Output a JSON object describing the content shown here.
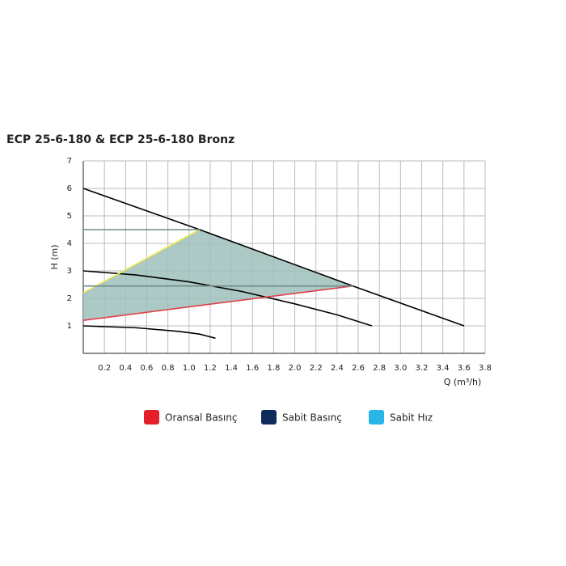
{
  "chart_data": {
    "type": "line",
    "title": "ECP 25-6-180 & ECP 25-6-180 Bronz",
    "xlabel": "Q (m³/h)",
    "ylabel": "H (m)",
    "xlim": [
      0,
      3.8
    ],
    "ylim": [
      0,
      7
    ],
    "xticks": [
      0.2,
      0.4,
      0.6,
      0.8,
      {
        "value": 1,
        "label": "1.0"
      },
      1.2,
      1.4,
      1.6,
      1.8,
      {
        "value": 2,
        "label": "2.0"
      },
      2.2,
      2.4,
      2.6,
      2.8,
      {
        "value": 3,
        "label": "3.0"
      },
      3.2,
      3.4,
      3.6,
      3.8
    ],
    "yticks": [
      1,
      2,
      3,
      4,
      5,
      6,
      7
    ],
    "grid": true,
    "region": {
      "color": "#9dbfbc",
      "x": [
        0,
        0,
        1.1,
        2.55
      ],
      "values": [
        1.2,
        2.2,
        4.5,
        2.45
      ]
    },
    "series": [
      {
        "color": "#000000",
        "x": [
          0,
          1.1,
          2.55,
          3.6
        ],
        "values": [
          6,
          4.5,
          2.45,
          1.0
        ]
      },
      {
        "color": "#000000",
        "x": [
          0,
          0.5,
          1.0,
          1.5,
          2.0,
          2.4,
          2.73
        ],
        "values": [
          3.0,
          2.85,
          2.6,
          2.25,
          1.8,
          1.4,
          1.0
        ]
      },
      {
        "color": "#000000",
        "x": [
          0,
          0.5,
          0.9,
          1.1,
          1.25
        ],
        "values": [
          1.0,
          0.93,
          0.8,
          0.7,
          0.55
        ]
      },
      {
        "color": "#e0404a",
        "x": [
          0,
          2.55
        ],
        "values": [
          1.2,
          2.45
        ]
      },
      {
        "color": "#e8e84a",
        "x": [
          0,
          1.1
        ],
        "values": [
          2.2,
          4.5
        ]
      },
      {
        "color": "#6f8c8a",
        "x": [
          0,
          1.1
        ],
        "values": [
          4.5,
          4.5
        ]
      },
      {
        "color": "#6f8c8a",
        "x": [
          0,
          2.55
        ],
        "values": [
          2.45,
          2.45
        ]
      }
    ],
    "legend": [
      {
        "name": "Oransal Basınç",
        "color": "#e3202a"
      },
      {
        "name": "Sabit Basınç",
        "color": "#0d2a5c"
      },
      {
        "name": "Sabit Hız",
        "color": "#29b5e8"
      }
    ]
  }
}
